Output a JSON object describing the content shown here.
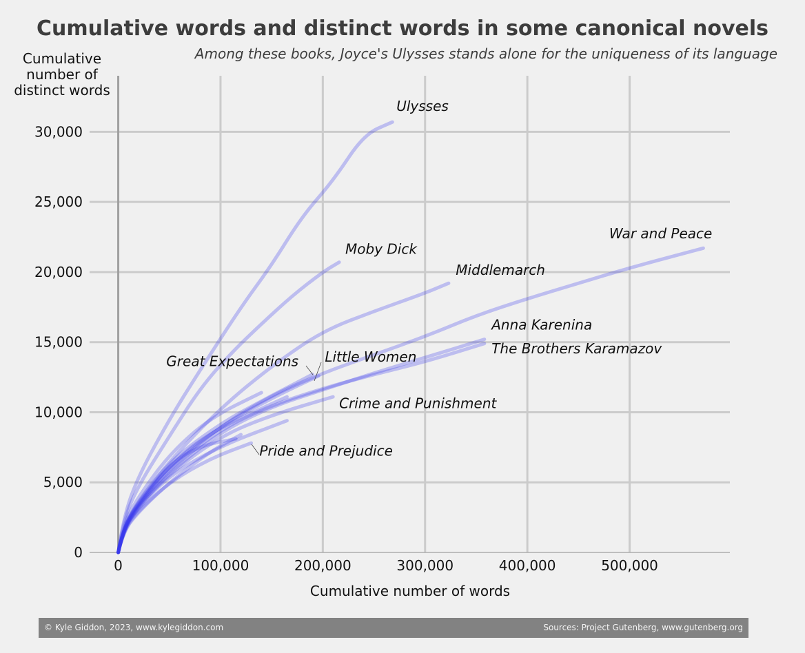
{
  "chart_data": {
    "type": "line",
    "title": "Cumulative words and distinct words in some canonical novels",
    "subtitle": "Among these books, Joyce's Ulysses stands alone for the uniqueness of its language",
    "xlabel": "Cumulative number of words",
    "ylabel": "Cumulative number of distinct words",
    "xlim": [
      -28000,
      598000
    ],
    "ylim": [
      0,
      34000
    ],
    "x_ticks": [
      0,
      100000,
      200000,
      300000,
      400000,
      500000
    ],
    "x_tick_labels": [
      "0",
      "100,000",
      "200,000",
      "300,000",
      "400,000",
      "500,000"
    ],
    "y_ticks": [
      0,
      5000,
      10000,
      15000,
      20000,
      25000,
      30000
    ],
    "y_tick_labels": [
      "0",
      "5,000",
      "10,000",
      "15,000",
      "20,000",
      "25,000",
      "30,000"
    ],
    "grid": true,
    "line_color": "#3a3aee",
    "series": [
      {
        "name": "Ulysses",
        "x": [
          0,
          5000,
          20000,
          50000,
          80000,
          120000,
          150000,
          180000,
          210000,
          240000,
          268000
        ],
        "y": [
          0,
          2500,
          5500,
          9500,
          13000,
          17500,
          20500,
          24000,
          26500,
          29800,
          30700
        ]
      },
      {
        "name": "Moby Dick",
        "x": [
          0,
          5000,
          20000,
          50000,
          80000,
          110000,
          140000,
          170000,
          200000,
          216000
        ],
        "y": [
          0,
          2300,
          4800,
          8300,
          11700,
          14200,
          16300,
          18300,
          20000,
          20700
        ]
      },
      {
        "name": "Middlemarch",
        "x": [
          0,
          5000,
          20000,
          50000,
          100000,
          150000,
          200000,
          250000,
          300000,
          323000
        ],
        "y": [
          0,
          1800,
          3700,
          6500,
          10300,
          13300,
          15800,
          17200,
          18500,
          19200
        ]
      },
      {
        "name": "War and Peace",
        "x": [
          0,
          5000,
          20000,
          50000,
          100000,
          150000,
          200000,
          250000,
          300000,
          350000,
          400000,
          450000,
          500000,
          572000
        ],
        "y": [
          0,
          1700,
          3400,
          6000,
          9000,
          11200,
          12800,
          14100,
          15400,
          16900,
          18100,
          19200,
          20300,
          21700
        ]
      },
      {
        "name": "Anna Karenina",
        "x": [
          0,
          5000,
          20000,
          50000,
          100000,
          150000,
          200000,
          250000,
          300000,
          358000
        ],
        "y": [
          0,
          1600,
          3300,
          5700,
          8600,
          10400,
          11600,
          12800,
          13900,
          15200
        ]
      },
      {
        "name": "The Brothers Karamazov",
        "x": [
          0,
          5000,
          20000,
          50000,
          100000,
          150000,
          200000,
          250000,
          300000,
          358000
        ],
        "y": [
          0,
          1650,
          3400,
          5900,
          8800,
          10500,
          11700,
          12700,
          13600,
          14900
        ]
      },
      {
        "name": "Great Expectations",
        "x": [
          0,
          5000,
          20000,
          50000,
          100000,
          140000,
          190000
        ],
        "y": [
          0,
          1800,
          3600,
          6500,
          9200,
          10800,
          12700
        ]
      },
      {
        "name": "Little Women",
        "x": [
          0,
          5000,
          20000,
          50000,
          100000,
          150000,
          196000
        ],
        "y": [
          0,
          1750,
          3500,
          6200,
          9000,
          11000,
          12600
        ]
      },
      {
        "name": "Crime and Punishment",
        "x": [
          0,
          5000,
          20000,
          50000,
          100000,
          150000,
          210000
        ],
        "y": [
          0,
          1650,
          3300,
          5600,
          8300,
          9800,
          11100
        ]
      },
      {
        "name": "Pride and Prejudice",
        "x": [
          0,
          5000,
          20000,
          50000,
          90000,
          130000
        ],
        "y": [
          0,
          1550,
          3000,
          5000,
          6700,
          7800
        ]
      },
      {
        "name": "",
        "x": [
          0,
          5000,
          20000,
          50000,
          90000,
          140000
        ],
        "y": [
          0,
          2000,
          4000,
          7000,
          9600,
          11400
        ]
      },
      {
        "name": "",
        "x": [
          0,
          5000,
          20000,
          50000,
          100000,
          165000
        ],
        "y": [
          0,
          1600,
          3200,
          5500,
          7600,
          9400
        ]
      },
      {
        "name": "",
        "x": [
          0,
          5000,
          20000,
          50000,
          90000,
          165000
        ],
        "y": [
          0,
          1700,
          3500,
          6200,
          8600,
          11100
        ]
      },
      {
        "name": "",
        "x": [
          0,
          5000,
          20000,
          50000,
          80000,
          115000
        ],
        "y": [
          0,
          1750,
          3600,
          6300,
          7600,
          8100
        ]
      },
      {
        "name": "",
        "x": [
          0,
          5000,
          20000,
          50000,
          90000,
          120000
        ],
        "y": [
          0,
          1500,
          2900,
          5000,
          7200,
          8400
        ]
      }
    ],
    "annotations": [
      {
        "text": "Ulysses",
        "x": 272000,
        "y": 31500
      },
      {
        "text": "Moby Dick",
        "x": 222000,
        "y": 21300
      },
      {
        "text": "Middlemarch",
        "x": 330000,
        "y": 19800
      },
      {
        "text": "War and Peace",
        "x": 480000,
        "y": 22400
      },
      {
        "text": "Anna Karenina",
        "x": 365000,
        "y": 15900
      },
      {
        "text": "The Brothers Karamazov",
        "x": 365000,
        "y": 14200
      },
      {
        "text": "Great Expectations",
        "x": 47000,
        "y": 13300
      },
      {
        "text": "Little Women",
        "x": 202000,
        "y": 13600
      },
      {
        "text": "Crime and Punishment",
        "x": 216000,
        "y": 10300
      },
      {
        "text": "Pride and Prejudice",
        "x": 138000,
        "y": 6900
      }
    ]
  },
  "footer": {
    "copyright": "© Kyle Giddon, 2023, www.kylegiddon.com",
    "sources": "Sources: Project Gutenberg, www.gutenberg.org"
  }
}
